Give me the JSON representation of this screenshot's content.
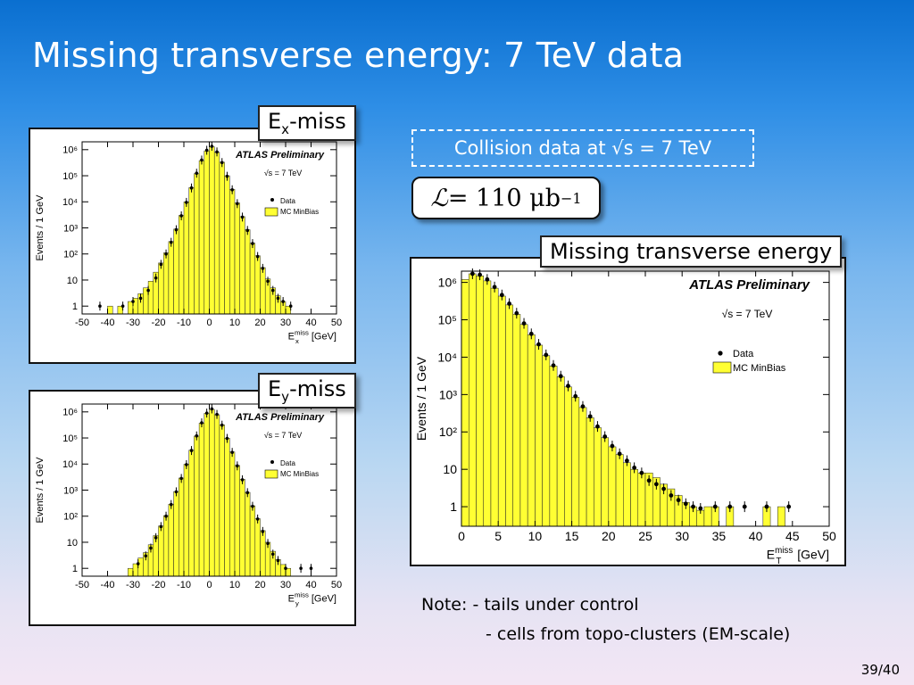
{
  "slide": {
    "title": "Missing transverse energy: 7 TeV data",
    "page_number": "39/40"
  },
  "labels": {
    "ex_box_base": "E",
    "ex_box_sub": "x",
    "ex_box_rest": "-miss",
    "ey_box_base": "E",
    "ey_box_sub": "y",
    "ey_box_rest": "-miss",
    "met_box": "Missing transverse energy",
    "collision": "Collision data at √s = 7 TeV",
    "lumi_script": "ℒ",
    "lumi_eq": " = 110 μb",
    "lumi_exp": "−1"
  },
  "note": {
    "line1_prefix": "Note:",
    "line1": "- tails under control",
    "line2": "- cells from topo-clusters (EM-scale)"
  },
  "chart_data": [
    {
      "id": "ex",
      "type": "bar",
      "annotation": "ATLAS Preliminary",
      "energy_label": "√s = 7 TeV",
      "legend": [
        "Data",
        "MC MinBias"
      ],
      "ylabel": "Events / 1 GeV",
      "xlabel_base": "E",
      "xlabel_sup": "miss",
      "xlabel_sub": "x",
      "xlabel_unit": "[GeV]",
      "log_y": true,
      "xlim": [
        -50,
        50
      ],
      "ylim": [
        0.5,
        2000000
      ],
      "x_ticks": [
        "-50",
        "-40",
        "-30",
        "-20",
        "-10",
        "0",
        "10",
        "20",
        "30",
        "40",
        "50"
      ],
      "y_ticks": [
        "1",
        "10",
        "10²",
        "10³",
        "10⁴",
        "10⁵",
        "10⁶"
      ],
      "colors": {
        "mc": "#ffff33",
        "data": "#000000"
      },
      "mc_bins": [
        [
          -40,
          1
        ],
        [
          -36,
          1
        ],
        [
          -32,
          1.5
        ],
        [
          -30,
          2
        ],
        [
          -28,
          3
        ],
        [
          -26,
          5
        ],
        [
          -24,
          9
        ],
        [
          -22,
          20
        ],
        [
          -20,
          45
        ],
        [
          -18,
          110
        ],
        [
          -16,
          300
        ],
        [
          -14,
          900
        ],
        [
          -12,
          3000
        ],
        [
          -10,
          10000
        ],
        [
          -8,
          35000
        ],
        [
          -6,
          120000
        ],
        [
          -4,
          380000
        ],
        [
          -2,
          900000
        ],
        [
          0,
          1300000
        ],
        [
          2,
          800000
        ],
        [
          4,
          330000
        ],
        [
          6,
          100000
        ],
        [
          8,
          30000
        ],
        [
          10,
          9000
        ],
        [
          12,
          2700
        ],
        [
          14,
          850
        ],
        [
          16,
          260
        ],
        [
          18,
          85
        ],
        [
          20,
          30
        ],
        [
          22,
          11
        ],
        [
          24,
          5
        ],
        [
          26,
          2.5
        ],
        [
          28,
          1.5
        ],
        [
          30,
          1
        ]
      ],
      "data_points": [
        [
          -44,
          1
        ],
        [
          -35,
          1
        ],
        [
          -31,
          1.5
        ],
        [
          -28,
          2
        ],
        [
          -25,
          4
        ],
        [
          -22,
          12
        ],
        [
          -20,
          40
        ],
        [
          -18,
          100
        ],
        [
          -16,
          280
        ],
        [
          -14,
          850
        ],
        [
          -12,
          2900
        ],
        [
          -10,
          9500
        ],
        [
          -8,
          34000
        ],
        [
          -6,
          125000
        ],
        [
          -4,
          400000
        ],
        [
          -2,
          950000
        ],
        [
          0,
          1350000
        ],
        [
          2,
          820000
        ],
        [
          4,
          320000
        ],
        [
          6,
          95000
        ],
        [
          8,
          29000
        ],
        [
          10,
          8500
        ],
        [
          12,
          2600
        ],
        [
          14,
          800
        ],
        [
          16,
          250
        ],
        [
          18,
          80
        ],
        [
          20,
          28
        ],
        [
          22,
          9
        ],
        [
          24,
          4
        ],
        [
          26,
          2
        ],
        [
          28,
          1.5
        ],
        [
          31,
          1
        ]
      ]
    },
    {
      "id": "ey",
      "type": "bar",
      "annotation": "ATLAS Preliminary",
      "energy_label": "√s = 7 TeV",
      "legend": [
        "Data",
        "MC MinBias"
      ],
      "ylabel": "Events / 1 GeV",
      "xlabel_base": "E",
      "xlabel_sup": "miss",
      "xlabel_sub": "y",
      "xlabel_unit": "[GeV]",
      "log_y": true,
      "xlim": [
        -50,
        50
      ],
      "ylim": [
        0.5,
        2000000
      ],
      "x_ticks": [
        "-50",
        "-40",
        "-30",
        "-20",
        "-10",
        "0",
        "10",
        "20",
        "30",
        "40",
        "50"
      ],
      "y_ticks": [
        "1",
        "10",
        "10²",
        "10³",
        "10⁴",
        "10⁵",
        "10⁶"
      ],
      "colors": {
        "mc": "#ffff33",
        "data": "#000000"
      },
      "mc_bins": [
        [
          -32,
          1
        ],
        [
          -30,
          1.5
        ],
        [
          -28,
          2.5
        ],
        [
          -26,
          4
        ],
        [
          -24,
          8
        ],
        [
          -22,
          18
        ],
        [
          -20,
          42
        ],
        [
          -18,
          105
        ],
        [
          -16,
          290
        ],
        [
          -14,
          880
        ],
        [
          -12,
          2900
        ],
        [
          -10,
          9800
        ],
        [
          -8,
          34000
        ],
        [
          -6,
          118000
        ],
        [
          -4,
          370000
        ],
        [
          -2,
          880000
        ],
        [
          0,
          1250000
        ],
        [
          2,
          780000
        ],
        [
          4,
          320000
        ],
        [
          6,
          98000
        ],
        [
          8,
          29000
        ],
        [
          10,
          8800
        ],
        [
          12,
          2600
        ],
        [
          14,
          820
        ],
        [
          16,
          250
        ],
        [
          18,
          80
        ],
        [
          20,
          28
        ],
        [
          22,
          10
        ],
        [
          24,
          4.5
        ],
        [
          26,
          2.2
        ],
        [
          28,
          1.4
        ],
        [
          30,
          1
        ]
      ],
      "data_points": [
        [
          -29,
          1.5
        ],
        [
          -26,
          3
        ],
        [
          -24,
          6
        ],
        [
          -22,
          15
        ],
        [
          -20,
          40
        ],
        [
          -18,
          100
        ],
        [
          -16,
          280
        ],
        [
          -14,
          860
        ],
        [
          -12,
          2800
        ],
        [
          -10,
          9500
        ],
        [
          -8,
          33000
        ],
        [
          -6,
          120000
        ],
        [
          -4,
          380000
        ],
        [
          -2,
          900000
        ],
        [
          0,
          1300000
        ],
        [
          2,
          800000
        ],
        [
          4,
          310000
        ],
        [
          6,
          96000
        ],
        [
          8,
          28000
        ],
        [
          10,
          8500
        ],
        [
          12,
          2500
        ],
        [
          14,
          800
        ],
        [
          16,
          240
        ],
        [
          18,
          78
        ],
        [
          20,
          26
        ],
        [
          22,
          9
        ],
        [
          24,
          3.5
        ],
        [
          26,
          2
        ],
        [
          29,
          1
        ],
        [
          35,
          1
        ],
        [
          39,
          1
        ]
      ]
    },
    {
      "id": "met",
      "type": "bar",
      "annotation": "ATLAS Preliminary",
      "energy_label": "√s = 7 TeV",
      "legend": [
        "Data",
        "MC MinBias"
      ],
      "ylabel": "Events / 1 GeV",
      "xlabel_base": "E",
      "xlabel_sup": "miss",
      "xlabel_sub": "T",
      "xlabel_unit": "[GeV]",
      "log_y": true,
      "xlim": [
        0,
        50
      ],
      "ylim": [
        0.3,
        2000000
      ],
      "x_ticks": [
        "0",
        "5",
        "10",
        "15",
        "20",
        "25",
        "30",
        "35",
        "40",
        "45",
        "50"
      ],
      "y_ticks": [
        "1",
        "10",
        "10²",
        "10³",
        "10⁴",
        "10⁵",
        "10⁶"
      ],
      "colors": {
        "mc": "#ffff33",
        "data": "#000000"
      },
      "mc_bins": [
        [
          0,
          1200000
        ],
        [
          1,
          1700000
        ],
        [
          2,
          1500000
        ],
        [
          3,
          1100000
        ],
        [
          4,
          700000
        ],
        [
          5,
          430000
        ],
        [
          6,
          250000
        ],
        [
          7,
          140000
        ],
        [
          8,
          75000
        ],
        [
          9,
          40000
        ],
        [
          10,
          21000
        ],
        [
          11,
          11000
        ],
        [
          12,
          5800
        ],
        [
          13,
          3000
        ],
        [
          14,
          1600
        ],
        [
          15,
          850
        ],
        [
          16,
          450
        ],
        [
          17,
          240
        ],
        [
          18,
          130
        ],
        [
          19,
          70
        ],
        [
          20,
          40
        ],
        [
          21,
          25
        ],
        [
          22,
          15
        ],
        [
          23,
          10
        ],
        [
          24,
          8
        ],
        [
          25,
          8
        ],
        [
          26,
          6
        ],
        [
          27,
          4
        ],
        [
          28,
          3
        ],
        [
          29,
          2
        ],
        [
          30,
          1.3
        ],
        [
          31,
          1
        ],
        [
          32,
          0.8
        ],
        [
          33,
          1
        ],
        [
          34,
          1
        ],
        [
          36,
          1
        ],
        [
          41,
          1
        ],
        [
          43,
          1
        ]
      ],
      "data_points": [
        [
          1,
          1700000
        ],
        [
          2,
          1600000
        ],
        [
          3,
          1200000
        ],
        [
          4,
          750000
        ],
        [
          5,
          460000
        ],
        [
          6,
          270000
        ],
        [
          7,
          150000
        ],
        [
          8,
          80000
        ],
        [
          9,
          42000
        ],
        [
          10,
          22000
        ],
        [
          11,
          11500
        ],
        [
          12,
          6000
        ],
        [
          13,
          3100
        ],
        [
          14,
          1700
        ],
        [
          15,
          900
        ],
        [
          16,
          480
        ],
        [
          17,
          260
        ],
        [
          18,
          140
        ],
        [
          19,
          75
        ],
        [
          20,
          42
        ],
        [
          21,
          26
        ],
        [
          22,
          17
        ],
        [
          23,
          11
        ],
        [
          24,
          8
        ],
        [
          25,
          5
        ],
        [
          26,
          4
        ],
        [
          27,
          3
        ],
        [
          28,
          2
        ],
        [
          29,
          1.5
        ],
        [
          30,
          1.2
        ],
        [
          31,
          1
        ],
        [
          32,
          0.9
        ],
        [
          34,
          1
        ],
        [
          36,
          1
        ],
        [
          38,
          1
        ],
        [
          41,
          1
        ],
        [
          44,
          1
        ]
      ]
    }
  ]
}
